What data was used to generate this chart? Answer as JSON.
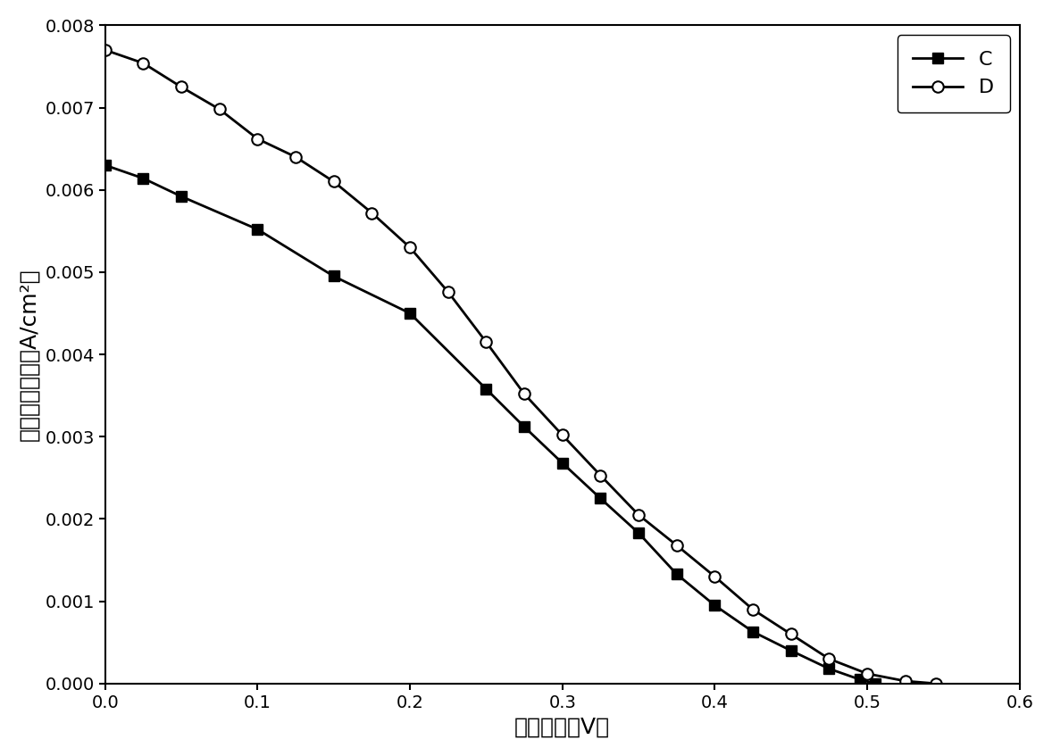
{
  "title": "",
  "xlabel": "开路电压（V）",
  "ylabel": "短路电流密度（A/cm²）",
  "xlim": [
    0.0,
    0.6
  ],
  "ylim": [
    0.0,
    0.008
  ],
  "xticks": [
    0.0,
    0.1,
    0.2,
    0.3,
    0.4,
    0.5,
    0.6
  ],
  "yticks": [
    0.0,
    0.001,
    0.002,
    0.003,
    0.004,
    0.005,
    0.006,
    0.007,
    0.008
  ],
  "C_x": [
    0.0,
    0.025,
    0.05,
    0.1,
    0.15,
    0.2,
    0.25,
    0.275,
    0.3,
    0.325,
    0.35,
    0.375,
    0.4,
    0.425,
    0.45,
    0.475,
    0.495,
    0.505
  ],
  "C_y": [
    0.0063,
    0.00614,
    0.00592,
    0.00552,
    0.00495,
    0.0045,
    0.00358,
    0.00312,
    0.00268,
    0.00225,
    0.00183,
    0.00133,
    0.00095,
    0.00063,
    0.0004,
    0.00018,
    5e-05,
    0.0
  ],
  "D_x": [
    0.0,
    0.025,
    0.05,
    0.075,
    0.1,
    0.125,
    0.15,
    0.175,
    0.2,
    0.225,
    0.25,
    0.275,
    0.3,
    0.325,
    0.35,
    0.375,
    0.4,
    0.425,
    0.45,
    0.475,
    0.5,
    0.525,
    0.545
  ],
  "D_y": [
    0.0077,
    0.00754,
    0.00725,
    0.00698,
    0.00662,
    0.0064,
    0.0061,
    0.00572,
    0.0053,
    0.00476,
    0.00415,
    0.00352,
    0.00302,
    0.00253,
    0.00205,
    0.00168,
    0.0013,
    0.0009,
    0.0006,
    0.0003,
    0.00012,
    3e-05,
    0.0
  ],
  "background_color": "#ffffff",
  "line_color": "#000000",
  "legend_C": "C",
  "legend_D": "D"
}
